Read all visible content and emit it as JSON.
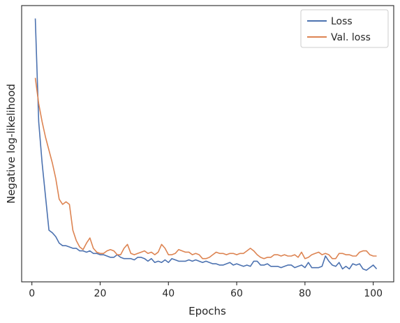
{
  "chart_data": {
    "type": "line",
    "title": "",
    "xlabel": "Epochs",
    "ylabel": "Negative log-likelihood",
    "xlim": [
      -3,
      106
    ],
    "ylim": [
      -0.02,
      1.05
    ],
    "x_ticks": [
      0,
      20,
      40,
      60,
      80,
      100
    ],
    "x_tick_labels": [
      "0",
      "20",
      "40",
      "60",
      "80",
      "100"
    ],
    "y_tick_labels_shown": false,
    "grid": false,
    "legend": {
      "position": "upper right"
    },
    "x": [
      1,
      2,
      3,
      4,
      5,
      6,
      7,
      8,
      9,
      10,
      11,
      12,
      13,
      14,
      15,
      16,
      17,
      18,
      19,
      20,
      21,
      22,
      23,
      24,
      25,
      26,
      27,
      28,
      29,
      30,
      31,
      32,
      33,
      34,
      35,
      36,
      37,
      38,
      39,
      40,
      41,
      42,
      43,
      44,
      45,
      46,
      47,
      48,
      49,
      50,
      51,
      52,
      53,
      54,
      55,
      56,
      57,
      58,
      59,
      60,
      61,
      62,
      63,
      64,
      65,
      66,
      67,
      68,
      69,
      70,
      71,
      72,
      73,
      74,
      75,
      76,
      77,
      78,
      79,
      80,
      81,
      82,
      83,
      84,
      85,
      86,
      87,
      88,
      89,
      90,
      91,
      92,
      93,
      94,
      95,
      96,
      97,
      98,
      99,
      100,
      101
    ],
    "series": [
      {
        "name": "Loss",
        "color": "#4c72b0",
        "values": [
          1.0,
          0.6,
          0.44,
          0.31,
          0.18,
          0.17,
          0.155,
          0.13,
          0.12,
          0.12,
          0.115,
          0.11,
          0.11,
          0.1,
          0.1,
          0.095,
          0.1,
          0.09,
          0.09,
          0.085,
          0.085,
          0.08,
          0.075,
          0.075,
          0.085,
          0.075,
          0.07,
          0.07,
          0.07,
          0.065,
          0.075,
          0.075,
          0.07,
          0.06,
          0.07,
          0.055,
          0.06,
          0.055,
          0.065,
          0.055,
          0.07,
          0.065,
          0.06,
          0.06,
          0.06,
          0.065,
          0.06,
          0.065,
          0.06,
          0.055,
          0.06,
          0.055,
          0.05,
          0.05,
          0.045,
          0.045,
          0.05,
          0.055,
          0.045,
          0.05,
          0.045,
          0.04,
          0.045,
          0.04,
          0.06,
          0.06,
          0.045,
          0.045,
          0.05,
          0.04,
          0.04,
          0.04,
          0.035,
          0.04,
          0.045,
          0.045,
          0.035,
          0.04,
          0.045,
          0.035,
          0.055,
          0.035,
          0.035,
          0.035,
          0.04,
          0.08,
          0.06,
          0.045,
          0.04,
          0.055,
          0.03,
          0.04,
          0.03,
          0.05,
          0.045,
          0.05,
          0.03,
          0.025,
          0.035,
          0.045,
          0.03
        ]
      },
      {
        "name": "Val. loss",
        "color": "#dd8452",
        "values": [
          0.77,
          0.67,
          0.6,
          0.54,
          0.49,
          0.44,
          0.38,
          0.3,
          0.28,
          0.29,
          0.28,
          0.18,
          0.14,
          0.115,
          0.105,
          0.13,
          0.15,
          0.11,
          0.095,
          0.09,
          0.09,
          0.1,
          0.105,
          0.1,
          0.085,
          0.085,
          0.11,
          0.125,
          0.09,
          0.085,
          0.09,
          0.095,
          0.1,
          0.09,
          0.095,
          0.085,
          0.095,
          0.125,
          0.11,
          0.085,
          0.085,
          0.09,
          0.105,
          0.1,
          0.095,
          0.095,
          0.085,
          0.09,
          0.085,
          0.07,
          0.07,
          0.075,
          0.085,
          0.095,
          0.09,
          0.09,
          0.085,
          0.09,
          0.09,
          0.085,
          0.09,
          0.09,
          0.1,
          0.11,
          0.1,
          0.085,
          0.075,
          0.07,
          0.075,
          0.075,
          0.085,
          0.085,
          0.08,
          0.085,
          0.08,
          0.08,
          0.085,
          0.075,
          0.095,
          0.07,
          0.075,
          0.085,
          0.09,
          0.095,
          0.085,
          0.09,
          0.085,
          0.07,
          0.07,
          0.09,
          0.09,
          0.085,
          0.085,
          0.08,
          0.08,
          0.095,
          0.1,
          0.1,
          0.085,
          0.08,
          0.08
        ]
      }
    ]
  }
}
